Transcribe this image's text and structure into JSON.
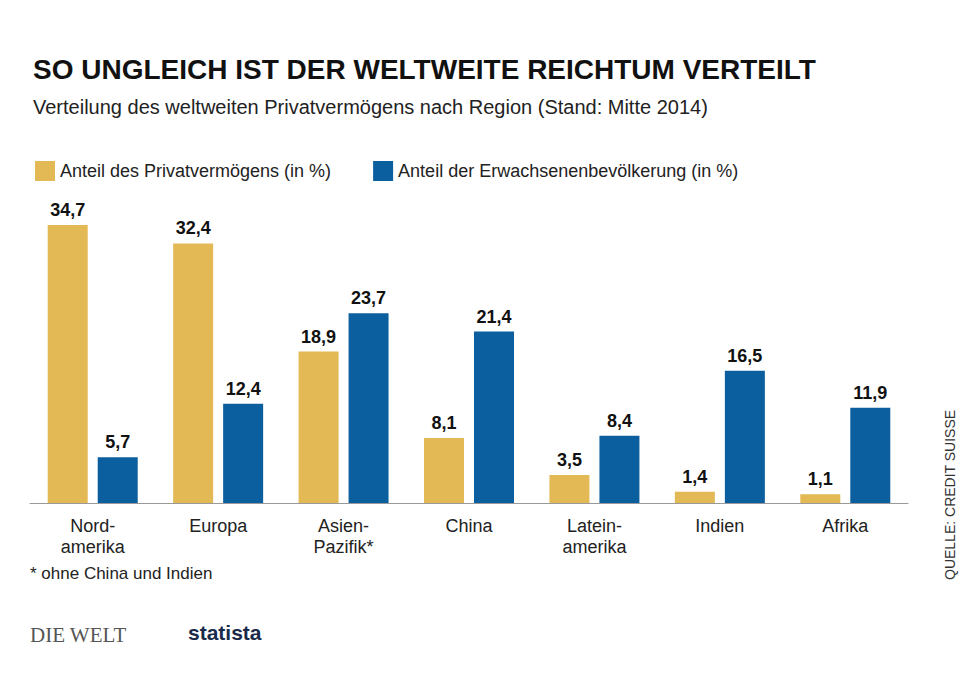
{
  "chart_data": {
    "type": "bar",
    "title": "SO UNGLEICH IST DER WELTWEITE REICHTUM VERTEILT",
    "subtitle": "Verteilung des weltweiten Privatvermögens nach Region (Stand: Mitte 2014)",
    "categories": [
      "Nord-\namerika",
      "Europa",
      "Asien-\nPazifik*",
      "China",
      "Latein-\namerika",
      "Indien",
      "Afrika"
    ],
    "series": [
      {
        "name": "Anteil des Privatvermögens (in %)",
        "color": "#e3b955",
        "values": [
          34.7,
          32.4,
          18.9,
          8.1,
          3.5,
          1.4,
          1.1
        ],
        "value_labels": [
          "34,7",
          "32,4",
          "18,9",
          "8,1",
          "3,5",
          "1,4",
          "1,1"
        ]
      },
      {
        "name": "Anteil der Erwachsenenbevölkerung (in %)",
        "color": "#0b5f9f",
        "values": [
          5.7,
          12.4,
          23.7,
          21.4,
          8.4,
          16.5,
          11.9
        ],
        "value_labels": [
          "5,7",
          "12,4",
          "23,7",
          "21,4",
          "8,4",
          "16,5",
          "11,9"
        ]
      }
    ],
    "ylim": [
      0,
      34.7
    ],
    "data_labels": true,
    "tick_labels": "x",
    "grid": false,
    "legend": "top-left",
    "footnote": "* ohne China und Indien",
    "source": "QUELLE: CREDIT SUISSE",
    "credits": [
      "DIE WELT",
      "statista"
    ]
  }
}
